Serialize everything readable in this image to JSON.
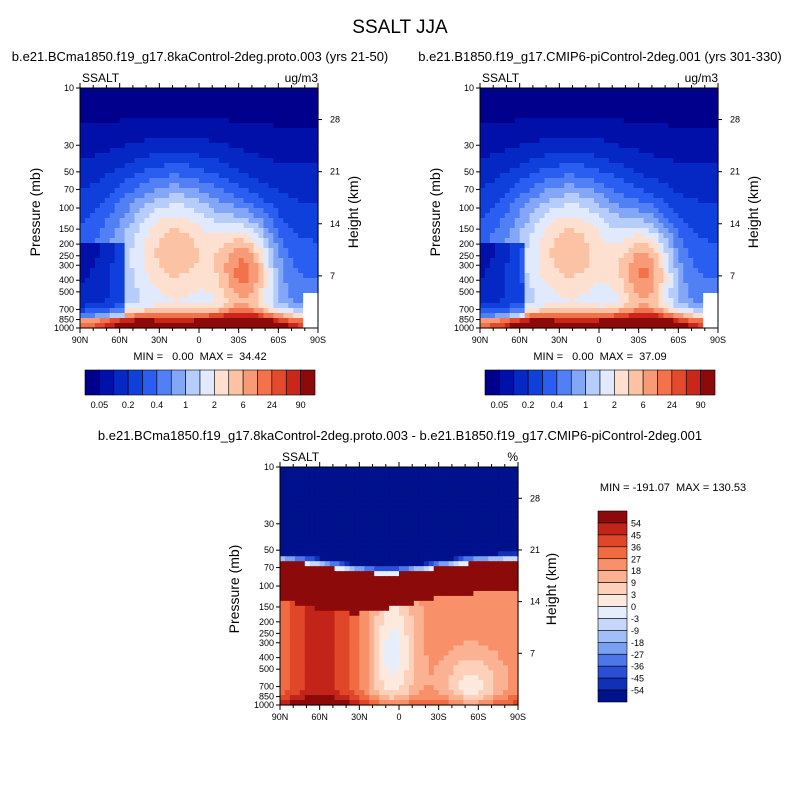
{
  "figure_title": "SSALT JJA",
  "chart_data": [
    {
      "type": "heatmap",
      "title": "b.e21.BCma1850.f19_g17.8kaControl-2deg.proto.003 (yrs 21-50)",
      "left_label": "SSALT",
      "right_label": "ug/m3",
      "ylabel": "Pressure (mb)",
      "ylabel_right": "Height (km)",
      "x_ticks": [
        "90N",
        "60N",
        "30N",
        "0",
        "30S",
        "60S",
        "90S"
      ],
      "y_ticks": [
        10,
        30,
        50,
        70,
        100,
        150,
        200,
        250,
        300,
        400,
        500,
        700,
        850,
        1000
      ],
      "y_ticks_right": [
        28,
        21,
        14,
        7
      ],
      "ylim": [
        1000,
        10
      ],
      "log_scale": true,
      "stats": "MIN =   0.00  MAX =  34.42",
      "min": 0.0,
      "max": 34.42,
      "colorbar_labels": [
        "0.05",
        "0.2",
        "0.4",
        "1",
        "2",
        "6",
        "24",
        "90"
      ]
    },
    {
      "type": "heatmap",
      "title": "b.e21.B1850.f19_g17.CMIP6-piControl-2deg.001 (yrs 301-330)",
      "left_label": "SSALT",
      "right_label": "ug/m3",
      "ylabel": "Pressure (mb)",
      "ylabel_right": "Height (km)",
      "x_ticks": [
        "90N",
        "60N",
        "30N",
        "0",
        "30S",
        "60S",
        "90S"
      ],
      "y_ticks": [
        10,
        30,
        50,
        70,
        100,
        150,
        200,
        250,
        300,
        400,
        500,
        700,
        850,
        1000
      ],
      "y_ticks_right": [
        28,
        21,
        14,
        7
      ],
      "ylim": [
        1000,
        10
      ],
      "log_scale": true,
      "stats": "MIN =   0.00  MAX =  37.09",
      "min": 0.0,
      "max": 37.09,
      "colorbar_labels": [
        "0.05",
        "0.2",
        "0.4",
        "1",
        "2",
        "6",
        "24",
        "90"
      ]
    },
    {
      "type": "heatmap",
      "title": "b.e21.BCma1850.f19_g17.8kaControl-2deg.proto.003 - b.e21.B1850.f19_g17.CMIP6-piControl-2deg.001",
      "left_label": "SSALT",
      "right_label": "%",
      "ylabel": "Pressure (mb)",
      "ylabel_right": "Height (km)",
      "x_ticks": [
        "90N",
        "60N",
        "30N",
        "0",
        "30S",
        "60S",
        "90S"
      ],
      "y_ticks": [
        10,
        30,
        50,
        70,
        100,
        150,
        200,
        250,
        300,
        400,
        500,
        700,
        850,
        1000
      ],
      "y_ticks_right": [
        28,
        21,
        14,
        7
      ],
      "ylim": [
        1000,
        10
      ],
      "log_scale": true,
      "stats": "MIN = -191.07  MAX = 130.53",
      "min": -191.07,
      "max": 130.53,
      "colorbar_labels": [
        "54",
        "45",
        "36",
        "27",
        "18",
        "9",
        "3",
        "0",
        "-3",
        "-9",
        "-18",
        "-27",
        "-36",
        "-45",
        "-54"
      ]
    }
  ],
  "palettes": {
    "seq": [
      "#00008c",
      "#0010a8",
      "#0528c4",
      "#1040dc",
      "#2a5ef0",
      "#5080f4",
      "#84a6f6",
      "#b6cdfa",
      "#e0eafc",
      "#fde0cf",
      "#fbc2a4",
      "#f89a76",
      "#f3714b",
      "#e24a2c",
      "#c8271a",
      "#8c0a0a"
    ],
    "diff": [
      "#8c0a0a",
      "#c2241a",
      "#e04628",
      "#f06a42",
      "#f8906a",
      "#fbb292",
      "#fdd0ba",
      "#fde9de",
      "#e6eefc",
      "#c6d7fa",
      "#a2bef6",
      "#7aa0f2",
      "#4d76ea",
      "#2a4ed6",
      "#1030b8",
      "#00118c"
    ]
  }
}
